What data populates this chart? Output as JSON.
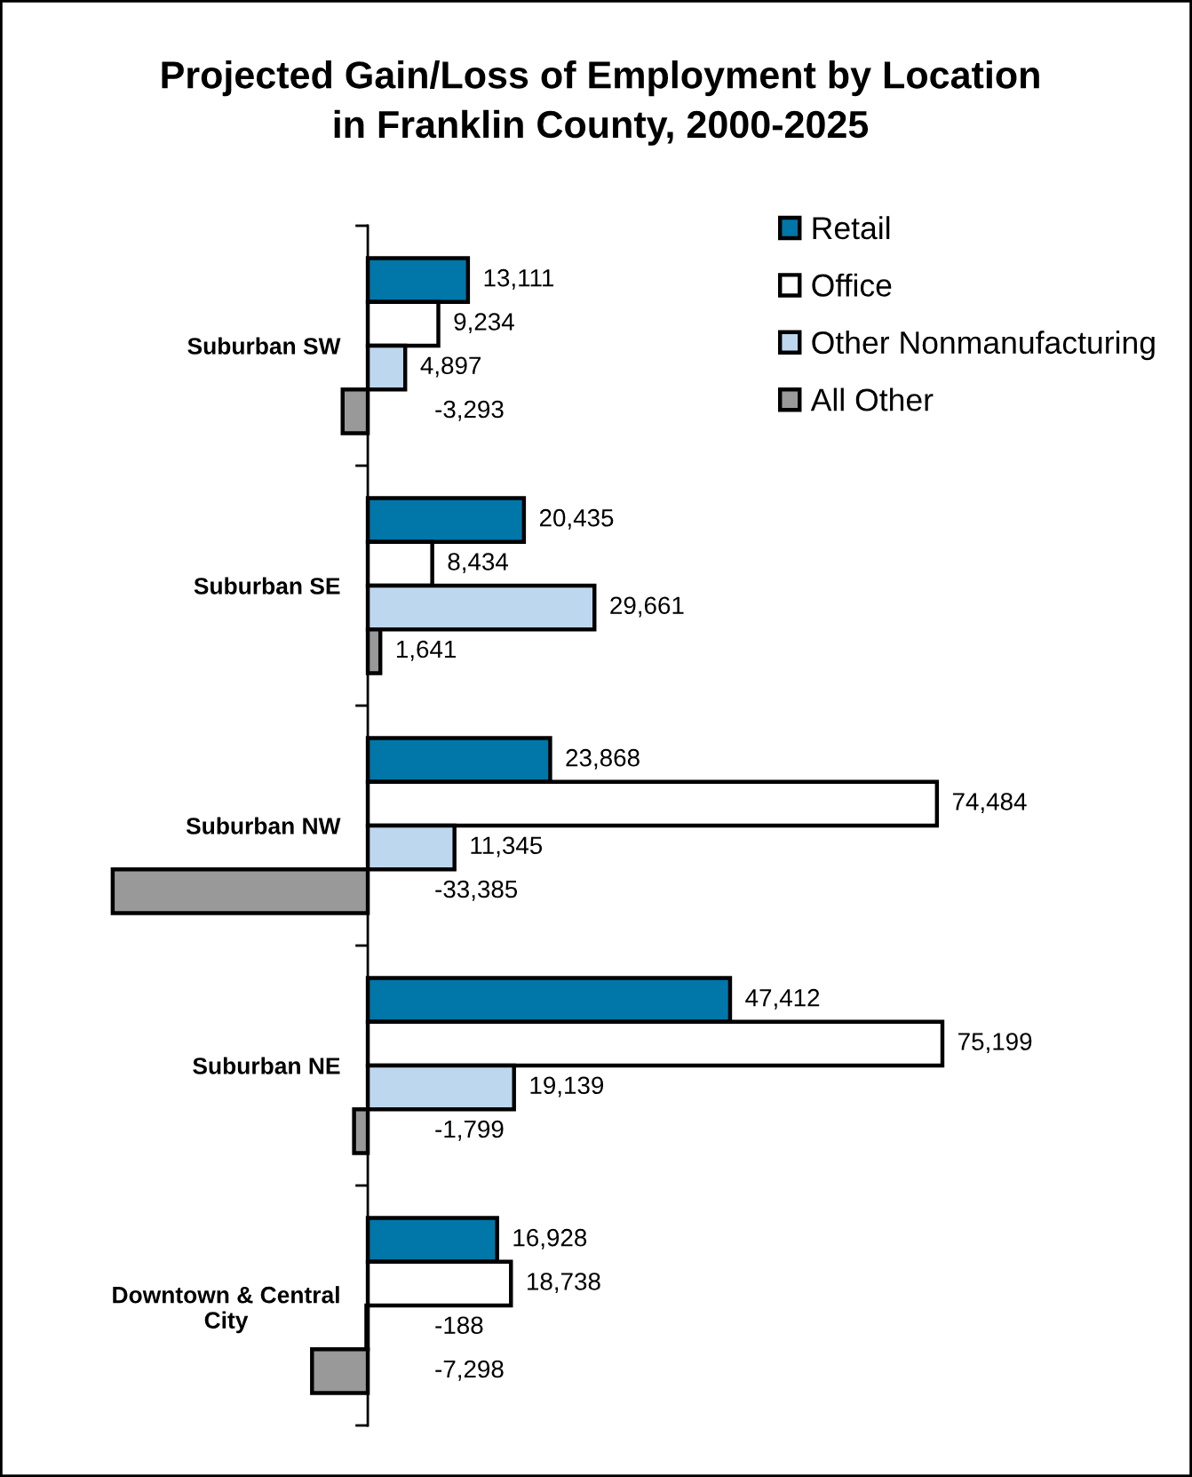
{
  "chart_data": {
    "type": "bar",
    "orientation": "horizontal",
    "title": "Projected Gain/Loss of Employment by Location\nin Franklin County, 2000-2025",
    "categories": [
      "Suburban SW",
      "Suburban SE",
      "Suburban NW",
      "Suburban NE",
      "Downtown & Central\nCity"
    ],
    "series": [
      {
        "name": "Retail",
        "color": "#0077a8",
        "values": [
          13111,
          20435,
          23868,
          47412,
          16928
        ],
        "value_labels": [
          "13,111",
          "20,435",
          "23,868",
          "47,412",
          "16,928"
        ]
      },
      {
        "name": "Office",
        "color": "#ffffff",
        "values": [
          9234,
          8434,
          74484,
          75199,
          18738
        ],
        "value_labels": [
          "9,234",
          "8,434",
          "74,484",
          "75,199",
          "18,738"
        ]
      },
      {
        "name": "Other Nonmanufacturing",
        "color": "#bdd7ee",
        "values": [
          4897,
          29661,
          11345,
          19139,
          -188
        ],
        "value_labels": [
          "4,897",
          "29,661",
          "11,345",
          "19,139",
          "-188"
        ]
      },
      {
        "name": "All Other",
        "color": "#999999",
        "values": [
          -3293,
          1641,
          -33385,
          -1799,
          -7298
        ],
        "value_labels": [
          "-3,293",
          "1,641",
          "-33,385",
          "-1,799",
          "-7,298"
        ]
      }
    ],
    "legend": "top right",
    "tick_labels": "y"
  }
}
